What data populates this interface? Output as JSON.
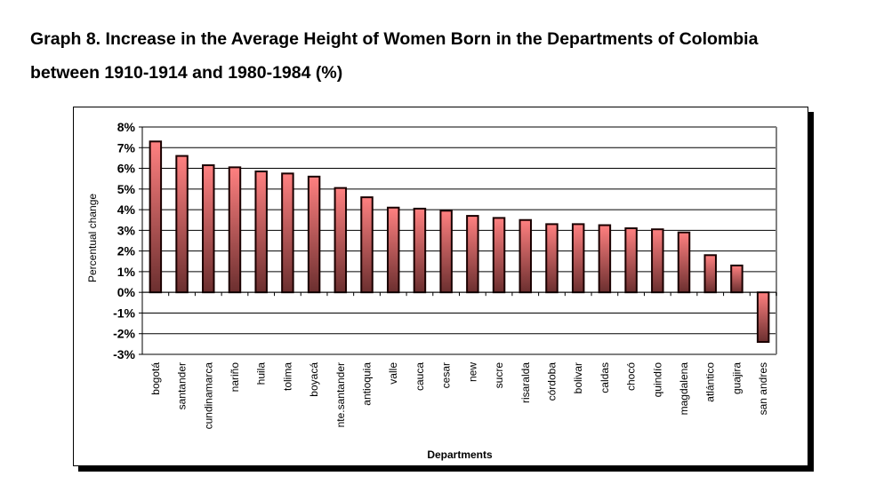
{
  "title_line1": "Graph 8. Increase in the Average Height of Women Born in the Departments of Colombia",
  "title_line2": "between 1910-1914 and 1980-1984 (%)",
  "colors": {
    "bar_top": "#ff8080",
    "bar_bottom": "#6b2f2f",
    "bar_outline": "#1a0000",
    "plot_border": "#808080"
  },
  "chart_data": {
    "type": "bar",
    "title": "Graph 8. Increase in the Average Height of Women Born in the Departments of Colombia between 1910-1914 and 1980-1984 (%)",
    "xlabel": "Departments",
    "ylabel": "Percentual change",
    "ylim": [
      -3,
      8
    ],
    "yticks": [
      "8%",
      "7%",
      "6%",
      "5%",
      "4%",
      "3%",
      "2%",
      "1%",
      "0%",
      "-1%",
      "-2%",
      "-3%"
    ],
    "ytick_values": [
      8,
      7,
      6,
      5,
      4,
      3,
      2,
      1,
      0,
      -1,
      -2,
      -3
    ],
    "grid": true,
    "categories": [
      "bogotá",
      "santander",
      "cundinamarca",
      "nariño",
      "huila",
      "tolima",
      "boyacá",
      "nte.santander",
      "antioquia",
      "valle",
      "cauca",
      "cesar",
      "new",
      "sucre",
      "risaralda",
      "córdoba",
      "bolivar",
      "caldas",
      "chocó",
      "quindío",
      "magdalena",
      "atlántico",
      "guajira",
      "san andres"
    ],
    "values": [
      7.3,
      6.6,
      6.15,
      6.05,
      5.85,
      5.75,
      5.6,
      5.05,
      4.6,
      4.1,
      4.05,
      3.95,
      3.7,
      3.6,
      3.5,
      3.3,
      3.3,
      3.25,
      3.1,
      3.05,
      2.9,
      1.8,
      1.3,
      -2.4
    ]
  }
}
